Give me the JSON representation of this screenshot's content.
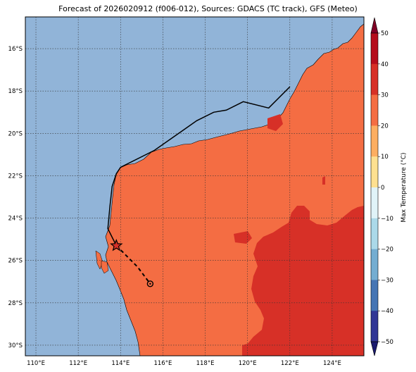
{
  "title": "Forecast of 2026020912 (f006-012), Sources: GDACS (TC track), GFS (Meteo)",
  "map": {
    "lon_range": [
      109.5,
      125.5
    ],
    "lat_range": [
      -30.5,
      -14.5
    ],
    "lon_ticks": [
      "110°E",
      "112°E",
      "114°E",
      "116°E",
      "118°E",
      "120°E",
      "122°E",
      "124°E"
    ],
    "lat_ticks": [
      "16°S",
      "18°S",
      "20°S",
      "22°S",
      "24°S",
      "26°S",
      "28°S",
      "30°S"
    ],
    "grid": true,
    "ocean_color": "#91b4d8",
    "land_color": "#f46d43",
    "hot_color": "#d73027"
  },
  "tc_track": {
    "path": [
      [
        122.0,
        -17.8
      ],
      [
        121.0,
        -18.8
      ],
      [
        119.8,
        -18.5
      ],
      [
        119.0,
        -18.9
      ],
      [
        118.4,
        -19.0
      ],
      [
        117.6,
        -19.4
      ],
      [
        116.6,
        -20.1
      ],
      [
        115.6,
        -20.8
      ],
      [
        114.0,
        -21.6
      ],
      [
        113.8,
        -21.9
      ],
      [
        113.6,
        -22.5
      ],
      [
        113.5,
        -23.4
      ],
      [
        113.4,
        -24.5
      ],
      [
        113.8,
        -25.3
      ]
    ],
    "forecast_path": [
      [
        113.8,
        -25.3
      ],
      [
        114.8,
        -26.3
      ],
      [
        115.4,
        -27.1
      ]
    ],
    "current_position": [
      113.8,
      -25.3
    ],
    "forecast_position": [
      115.4,
      -27.1
    ]
  },
  "colorbar": {
    "label": "Max Temperature (°C)",
    "ticks": [
      "50",
      "40",
      "30",
      "20",
      "10",
      "0",
      "−10",
      "−20",
      "−30",
      "−40",
      "−50"
    ],
    "colors": [
      "#800026",
      "#b50d1c",
      "#d73027",
      "#f46d43",
      "#fdae61",
      "#fee090",
      "#ffffd9",
      "#e0f3f8",
      "#abd9e9",
      "#74add1",
      "#4575b4",
      "#313695",
      "#1a1a6e"
    ]
  }
}
